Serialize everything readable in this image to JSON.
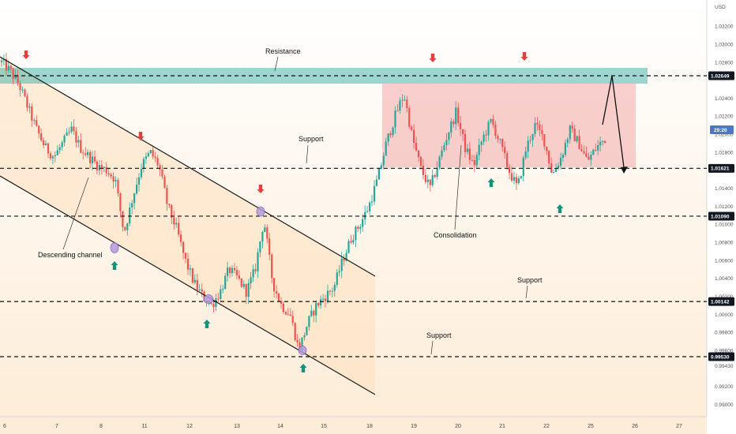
{
  "chart_data": {
    "type": "candlestick",
    "currency_label": "USD",
    "price_tags": {
      "current": "29:20"
    },
    "y_ticks": [
      "1.03200",
      "1.03000",
      "1.02800",
      "1.02400",
      "1.02200",
      "1.02000",
      "1.01800",
      "1.01400",
      "1.01200",
      "1.01000",
      "1.00800",
      "1.00600",
      "1.00400",
      "1.00200",
      "1.00000",
      "0.99800",
      "0.99600",
      "0.99430",
      "0.99200",
      "0.99000"
    ],
    "x_ticks": [
      "6",
      "7",
      "8",
      "11",
      "12",
      "13",
      "14",
      "15",
      "18",
      "19",
      "20",
      "21",
      "22",
      "25",
      "26",
      "27"
    ],
    "levels": [
      {
        "value": "1.02649",
        "style": "dashed"
      },
      {
        "value": "1.01621",
        "style": "dashed"
      },
      {
        "value": "1.01090",
        "style": "dashed"
      },
      {
        "value": "1.00142",
        "style": "dashed"
      },
      {
        "value": "0.99530",
        "style": "dashed"
      }
    ],
    "annotations": [
      {
        "text": "Resistance"
      },
      {
        "text": "Support"
      },
      {
        "text": "Descending channel"
      },
      {
        "text": "Consolidation"
      },
      {
        "text": "Support"
      },
      {
        "text": "Support"
      }
    ],
    "colors": {
      "up": "#26a69a",
      "down": "#ef5350",
      "resistance_zone": "#4db6ac",
      "consolidation_zone": "#ef9a9a",
      "channel_fill": "#fde7c8",
      "marker_down": "#e0413f",
      "marker_up": "#14937c",
      "touch": "#b39ddb"
    },
    "trend_points": [
      1.028,
      1.027,
      1.0255,
      1.023,
      1.0205,
      1.0185,
      1.0175,
      1.019,
      1.0205,
      1.0185,
      1.0175,
      1.0165,
      1.016,
      1.015,
      1.009,
      1.013,
      1.0165,
      1.018,
      1.0165,
      1.012,
      1.0095,
      1.006,
      1.0035,
      1.002,
      1.001,
      1.0025,
      1.005,
      1.004,
      1.0025,
      1.005,
      1.0105,
      1.0035,
      1.001,
      1.0,
      0.996,
      0.999,
      1.001,
      1.002,
      1.003,
      1.006,
      1.0085,
      1.01,
      1.012,
      1.015,
      1.019,
      1.022,
      1.0245,
      1.0195,
      1.016,
      1.014,
      1.017,
      1.02,
      1.0225,
      1.0185,
      1.0165,
      1.0195,
      1.0215,
      1.019,
      1.016,
      1.014,
      1.0185,
      1.021,
      1.0195,
      1.0155,
      1.0175,
      1.0205,
      1.019,
      1.017,
      1.0185,
      1.0195
    ]
  }
}
